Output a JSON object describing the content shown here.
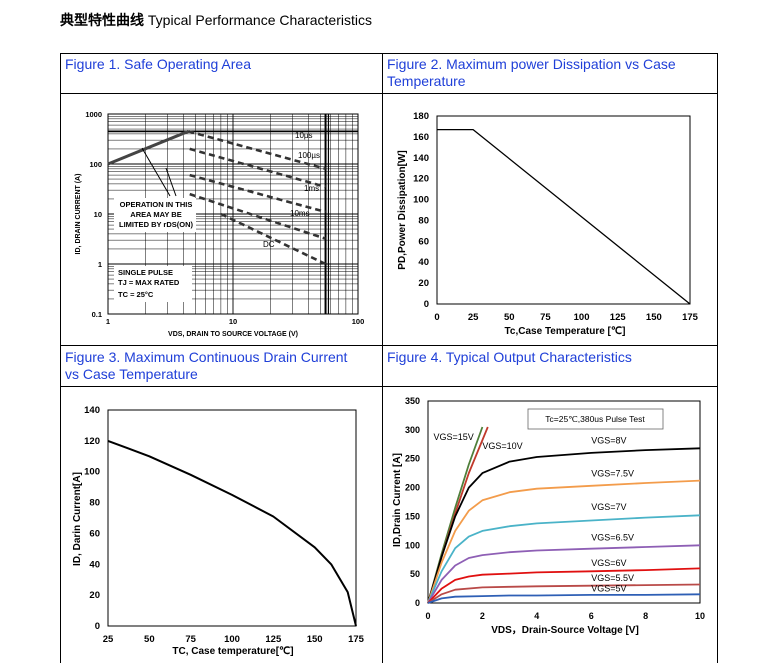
{
  "header": {
    "title_cn": "典型特性曲线",
    "title_en": "Typical Performance Characteristics"
  },
  "captions": {
    "fig1": "Figure 1. Safe Operating Area",
    "fig2": "Figure 2. Maximum power Dissipation vs Case Temperature",
    "fig3": "Figure 3. Maximum Continuous Drain Current vs Case Temperature",
    "fig4": "Figure 4. Typical Output Characteristics"
  },
  "chart_data": [
    {
      "id": "fig1",
      "type": "line",
      "xscale": "log",
      "yscale": "log",
      "xlim": [
        1,
        100
      ],
      "ylim": [
        0.1,
        1000
      ],
      "xticks": [
        "1",
        "10",
        "100"
      ],
      "yticks": [
        "1000",
        "100",
        "10",
        "1",
        "0.1"
      ],
      "xlabel": "VDS, DRAIN TO SOURCE VOLTAGE (V)",
      "ylabel": "ID, DRAIN CURRENT (A)",
      "annotations": [
        "10µs",
        "100µs",
        "1ms",
        "10ms",
        "DC",
        "OPERATION IN THIS",
        "AREA MAY BE",
        "LIMITED BY rDS(ON)",
        "SINGLE PULSE",
        "TJ = MAX RATED",
        "TC = 25°C"
      ],
      "series": [
        {
          "name": "limit",
          "x": [
            1,
            4.4
          ],
          "y": [
            100,
            450
          ]
        },
        {
          "name": "10µs",
          "x": [
            4.4,
            55
          ],
          "y": [
            450,
            80
          ]
        },
        {
          "name": "100µs",
          "x": [
            4.5,
            55
          ],
          "y": [
            200,
            35
          ]
        },
        {
          "name": "1ms",
          "x": [
            4.5,
            55
          ],
          "y": [
            60,
            11
          ]
        },
        {
          "name": "10ms",
          "x": [
            4.5,
            55
          ],
          "y": [
            25,
            3.2
          ]
        },
        {
          "name": "DC",
          "x": [
            8,
            55
          ],
          "y": [
            10,
            1
          ]
        }
      ]
    },
    {
      "id": "fig2",
      "type": "line",
      "xlim": [
        0,
        175
      ],
      "ylim": [
        0,
        180
      ],
      "xticks": [
        "0",
        "25",
        "50",
        "75",
        "100",
        "125",
        "150",
        "175"
      ],
      "yticks": [
        "0",
        "20",
        "40",
        "60",
        "80",
        "100",
        "120",
        "140",
        "160",
        "180"
      ],
      "xlabel": "Tc,Case Temperature [℃]",
      "ylabel": "PD,Power Dissipation[W]",
      "series": [
        {
          "x": [
            0,
            25,
            175
          ],
          "y": [
            167,
            167,
            0
          ]
        }
      ]
    },
    {
      "id": "fig3",
      "type": "line",
      "xlim": [
        25,
        175
      ],
      "ylim": [
        0,
        140
      ],
      "xticks": [
        "25",
        "50",
        "75",
        "100",
        "125",
        "150",
        "175"
      ],
      "yticks": [
        "0",
        "20",
        "40",
        "60",
        "80",
        "100",
        "120",
        "140"
      ],
      "xlabel": "TC, Case temperature[℃]",
      "ylabel": "ID, Darin Current[A]",
      "series": [
        {
          "x": [
            25,
            50,
            75,
            100,
            125,
            150,
            160,
            170,
            175
          ],
          "y": [
            120,
            110,
            98,
            85,
            71,
            51,
            40,
            22,
            0
          ]
        }
      ]
    },
    {
      "id": "fig4",
      "type": "line",
      "xlim": [
        0,
        10
      ],
      "ylim": [
        0,
        350
      ],
      "xticks": [
        "0",
        "2",
        "4",
        "6",
        "8",
        "10"
      ],
      "yticks": [
        "0",
        "50",
        "100",
        "150",
        "200",
        "250",
        "300",
        "350"
      ],
      "xlabel": "VDS，Drain-Source Voltage [V]",
      "ylabel": "ID,Drain Current [A]",
      "annotation": "Tc=25℃,380us Pulse Test",
      "series": [
        {
          "name": "VGS=15V",
          "color": "#4f7f3a",
          "x": [
            0,
            0.5,
            1,
            1.5,
            2
          ],
          "y": [
            0,
            85,
            165,
            240,
            305
          ]
        },
        {
          "name": "VGS=10V",
          "color": "#c0392b",
          "x": [
            0,
            0.5,
            1,
            1.5,
            2.2
          ],
          "y": [
            0,
            80,
            155,
            225,
            305
          ]
        },
        {
          "name": "VGS=8V",
          "color": "#000000",
          "x": [
            0,
            0.5,
            1,
            1.5,
            2,
            3,
            4,
            6,
            8,
            10
          ],
          "y": [
            0,
            80,
            150,
            200,
            225,
            245,
            253,
            260,
            265,
            268
          ]
        },
        {
          "name": "VGS=7.5V",
          "color": "#f39c4b",
          "x": [
            0,
            0.5,
            1,
            1.5,
            2,
            3,
            4,
            6,
            8,
            10
          ],
          "y": [
            0,
            70,
            125,
            160,
            178,
            192,
            198,
            203,
            208,
            212
          ]
        },
        {
          "name": "VGS=7V",
          "color": "#4ab3c8",
          "x": [
            0,
            0.5,
            1,
            1.5,
            2,
            3,
            4,
            6,
            8,
            10
          ],
          "y": [
            0,
            55,
            95,
            115,
            125,
            133,
            138,
            143,
            148,
            152
          ]
        },
        {
          "name": "VGS=6.5V",
          "color": "#8e5fb5",
          "x": [
            0,
            0.5,
            1,
            1.5,
            2,
            3,
            4,
            6,
            8,
            10
          ],
          "y": [
            0,
            40,
            65,
            78,
            83,
            88,
            91,
            94,
            97,
            100
          ]
        },
        {
          "name": "VGS=6V",
          "color": "#e01010",
          "x": [
            0,
            0.5,
            1,
            1.5,
            2,
            3,
            4,
            6,
            8,
            10
          ],
          "y": [
            0,
            25,
            40,
            46,
            49,
            51,
            53,
            55,
            57,
            60
          ]
        },
        {
          "name": "VGS=5.5V",
          "color": "#b94a48",
          "x": [
            0,
            0.5,
            1,
            2,
            3,
            4,
            6,
            8,
            10
          ],
          "y": [
            0,
            15,
            23,
            27,
            28,
            29,
            30,
            31,
            32
          ]
        },
        {
          "name": "VGS=5V",
          "color": "#2e5fb5",
          "x": [
            0,
            0.5,
            1,
            2,
            3,
            4,
            6,
            8,
            10
          ],
          "y": [
            0,
            8,
            11,
            12,
            13,
            13,
            14,
            14,
            15
          ]
        }
      ]
    }
  ]
}
